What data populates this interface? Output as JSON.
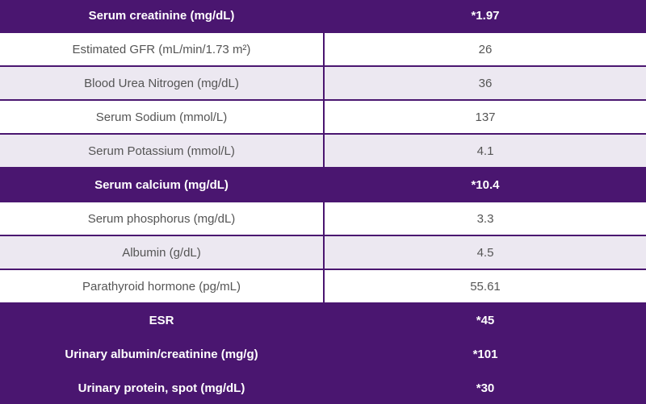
{
  "table": {
    "rows": [
      {
        "label": "Serum creatinine (mg/dL)",
        "value": "*1.97",
        "style": "abnormal"
      },
      {
        "label": "Estimated GFR (mL/min/1.73 m²)",
        "value": "26",
        "style": "white"
      },
      {
        "label": "Blood Urea Nitrogen (mg/dL)",
        "value": "36",
        "style": "lavender"
      },
      {
        "label": "Serum Sodium (mmol/L)",
        "value": "137",
        "style": "white"
      },
      {
        "label": "Serum Potassium (mmol/L)",
        "value": "4.1",
        "style": "lavender"
      },
      {
        "label": "Serum calcium (mg/dL)",
        "value": "*10.4",
        "style": "abnormal"
      },
      {
        "label": "Serum phosphorus (mg/dL)",
        "value": "3.3",
        "style": "white"
      },
      {
        "label": "Albumin (g/dL)",
        "value": "4.5",
        "style": "lavender"
      },
      {
        "label": "Parathyroid hormone (pg/mL)",
        "value": "55.61",
        "style": "white"
      },
      {
        "label": "ESR",
        "value": "*45",
        "style": "abnormal"
      },
      {
        "label": "Urinary albumin/creatinine (mg/g)",
        "value": "*101",
        "style": "abnormal"
      },
      {
        "label": "Urinary protein, spot (mg/dL)",
        "value": "*30",
        "style": "abnormal"
      }
    ]
  },
  "colors": {
    "abnormal_row_bg": "#4a1670",
    "abnormal_row_text": "#ffffff",
    "normal_row_bg_white": "#ffffff",
    "normal_row_bg_lavender": "#ece8f1",
    "normal_row_text": "#555555"
  }
}
